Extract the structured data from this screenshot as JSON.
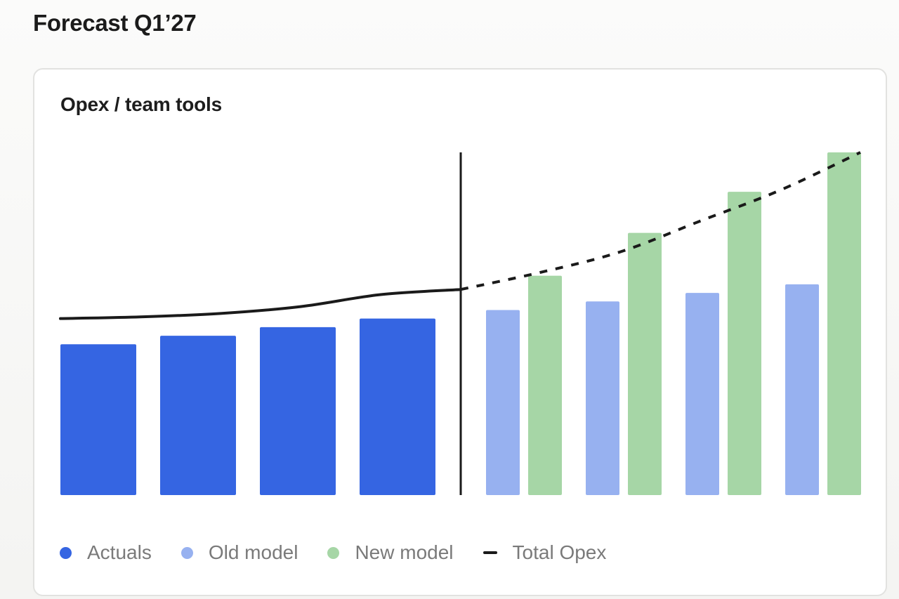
{
  "page_title": "Forecast Q1’27",
  "card_title": "Opex / team tools",
  "colors": {
    "actuals": "#3565e2",
    "old_model": "#97b1f0",
    "new_model": "#a6d6a6",
    "total_line": "#1a1a1a"
  },
  "legend": {
    "actuals": "Actuals",
    "old_model": "Old model",
    "new_model": "New model",
    "total_opex": "Total Opex"
  },
  "chart_data": {
    "type": "bar",
    "title": "Opex / team tools",
    "xlabel": "",
    "ylabel": "",
    "ylim": [
      0,
      100
    ],
    "grid": false,
    "legend_position": "bottom",
    "actuals": [
      44,
      46.5,
      49,
      51.5
    ],
    "forecast_old_model": [
      54,
      56.5,
      59,
      61.5
    ],
    "forecast_new_model": [
      64,
      76.5,
      88.5,
      100
    ],
    "total_opex_actual": [
      51.5,
      52,
      53,
      55,
      58.5,
      60
    ],
    "total_opex_forecast": [
      60,
      65,
      71,
      80,
      89,
      100
    ]
  }
}
